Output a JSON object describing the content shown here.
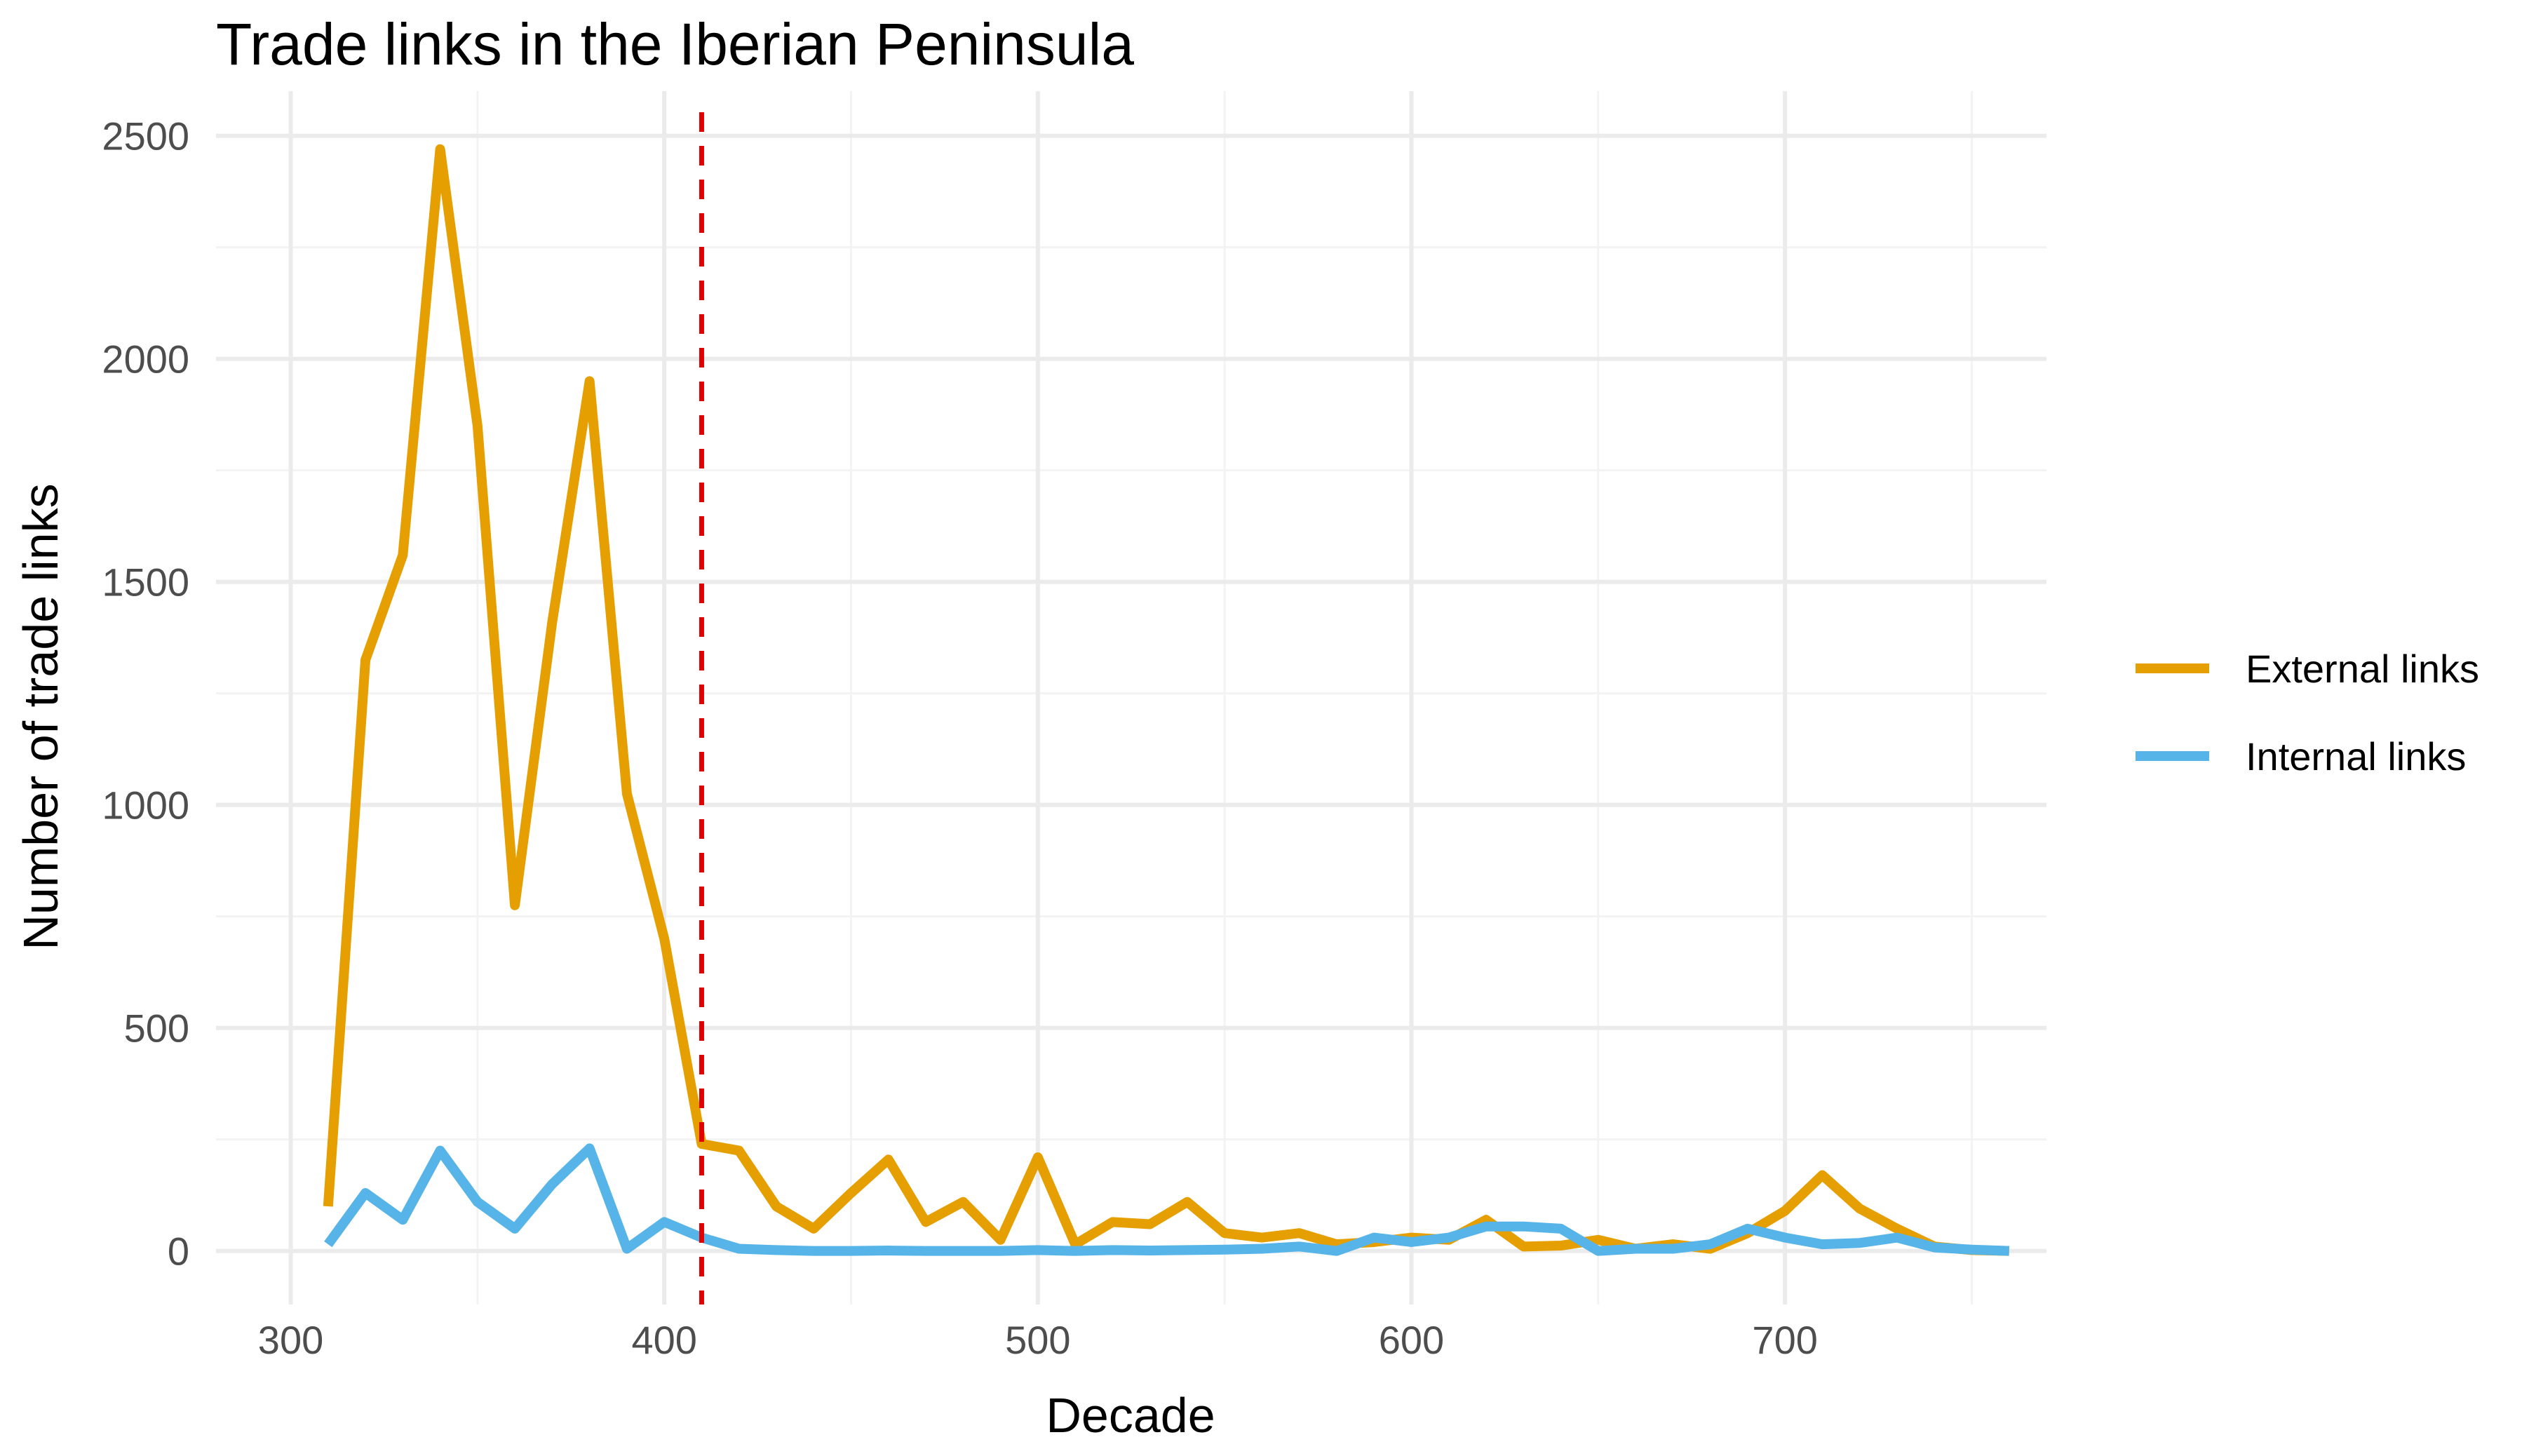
{
  "colors": {
    "external": "#E69F00",
    "internal": "#56B4E9",
    "vline": "#E00000",
    "grid_major": "#EBEBEB",
    "grid_minor": "#F3F3F3"
  },
  "chart_data": {
    "type": "line",
    "title": "Trade links in the Iberian Peninsula",
    "xlabel": "Decade",
    "ylabel": "Number of trade links",
    "xlim": [
      280,
      770
    ],
    "ylim": [
      -120,
      2600
    ],
    "x_ticks": [
      300,
      400,
      500,
      600,
      700
    ],
    "x_tick_labels": [
      "300",
      "400",
      "500",
      "600",
      "700"
    ],
    "y_ticks": [
      0,
      500,
      1000,
      1500,
      2000,
      2500
    ],
    "y_tick_labels": [
      "0",
      "500",
      "1000",
      "1500",
      "2000",
      "2500"
    ],
    "grid": true,
    "legend_position": "right",
    "vline": {
      "x": 410,
      "style": "dashed"
    },
    "x": [
      310,
      320,
      330,
      340,
      350,
      360,
      370,
      380,
      390,
      400,
      410,
      420,
      430,
      440,
      450,
      460,
      470,
      480,
      490,
      500,
      510,
      520,
      530,
      540,
      550,
      560,
      570,
      580,
      590,
      600,
      610,
      620,
      630,
      640,
      650,
      660,
      670,
      680,
      690,
      700,
      710,
      720,
      730,
      740,
      750,
      760
    ],
    "series": [
      {
        "name": "External links",
        "values": [
          100,
          1325,
          1560,
          2470,
          1850,
          775,
          1410,
          1950,
          1025,
          700,
          240,
          225,
          100,
          50,
          130,
          205,
          65,
          110,
          25,
          210,
          15,
          65,
          60,
          110,
          40,
          30,
          40,
          15,
          20,
          30,
          25,
          70,
          10,
          12,
          25,
          5,
          15,
          5,
          40,
          90,
          170,
          95,
          50,
          10,
          2,
          0
        ]
      },
      {
        "name": "Internal links",
        "values": [
          15,
          130,
          70,
          225,
          110,
          50,
          150,
          230,
          5,
          65,
          30,
          5,
          2,
          0,
          0,
          1,
          0,
          0,
          0,
          2,
          0,
          2,
          1,
          2,
          3,
          5,
          10,
          0,
          30,
          20,
          30,
          55,
          55,
          50,
          0,
          5,
          5,
          15,
          50,
          30,
          15,
          18,
          30,
          8,
          3,
          0
        ]
      }
    ]
  }
}
